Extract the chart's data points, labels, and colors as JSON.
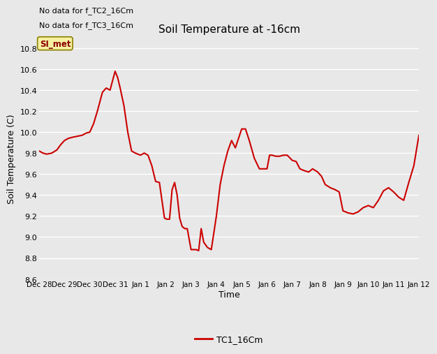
{
  "title": "Soil Temperature at -16cm",
  "xlabel": "Time",
  "ylabel": "Soil Temperature (C)",
  "ylim": [
    8.6,
    10.9
  ],
  "xlim": [
    0,
    15
  ],
  "line_color": "#cc0000",
  "line_width": 1.5,
  "bg_color": "#e8e8e8",
  "grid_color": "#ffffff",
  "legend_label": "TC1_16Cm",
  "no_data_texts": [
    "No data for f_TC2_16Cm",
    "No data for f_TC3_16Cm"
  ],
  "si_met_label": "SI_met",
  "tick_labels": [
    "Dec 28",
    "Dec 29",
    "Dec 30",
    "Dec 31",
    "Jan 1",
    "Jan 2",
    "Jan 3",
    "Jan 4",
    "Jan 5",
    "Jan 6",
    "Jan 7",
    "Jan 8",
    "Jan 9",
    "Jan 10",
    "Jan 11",
    "Jan 12"
  ],
  "yticks": [
    8.6,
    8.8,
    9.0,
    9.2,
    9.4,
    9.6,
    9.8,
    10.0,
    10.2,
    10.4,
    10.6,
    10.8
  ],
  "key_x": [
    0.0,
    0.15,
    0.3,
    0.5,
    0.7,
    0.85,
    1.0,
    1.15,
    1.3,
    1.5,
    1.7,
    1.85,
    2.0,
    2.15,
    2.3,
    2.5,
    2.65,
    2.8,
    3.0,
    3.1,
    3.2,
    3.35,
    3.5,
    3.65,
    3.8,
    4.0,
    4.15,
    4.3,
    4.45,
    4.6,
    4.75,
    4.85,
    4.95,
    5.05,
    5.15,
    5.25,
    5.35,
    5.45,
    5.55,
    5.65,
    5.75,
    5.85,
    6.0,
    6.1,
    6.2,
    6.3,
    6.4,
    6.5,
    6.65,
    6.8,
    7.0,
    7.15,
    7.3,
    7.45,
    7.6,
    7.75,
    8.0,
    8.15,
    8.3,
    8.5,
    8.7,
    8.85,
    9.0,
    9.1,
    9.2,
    9.35,
    9.5,
    9.65,
    9.8,
    10.0,
    10.15,
    10.3,
    10.5,
    10.65,
    10.8,
    11.0,
    11.15,
    11.3,
    11.5,
    11.7,
    11.85,
    12.0,
    12.2,
    12.4,
    12.6,
    12.8,
    13.0,
    13.2,
    13.4,
    13.6,
    13.8,
    14.0,
    14.2,
    14.4,
    14.6,
    14.8,
    15.0
  ],
  "key_y": [
    9.82,
    9.8,
    9.79,
    9.8,
    9.83,
    9.88,
    9.92,
    9.94,
    9.95,
    9.96,
    9.97,
    9.99,
    10.0,
    10.08,
    10.2,
    10.38,
    10.42,
    10.4,
    10.58,
    10.52,
    10.42,
    10.25,
    10.0,
    9.82,
    9.8,
    9.78,
    9.8,
    9.78,
    9.68,
    9.53,
    9.52,
    9.35,
    9.18,
    9.17,
    9.17,
    9.45,
    9.52,
    9.4,
    9.18,
    9.1,
    9.08,
    9.08,
    8.88,
    8.88,
    8.88,
    8.87,
    9.08,
    8.95,
    8.9,
    8.88,
    9.2,
    9.5,
    9.68,
    9.82,
    9.92,
    9.85,
    10.03,
    10.03,
    9.92,
    9.75,
    9.65,
    9.65,
    9.65,
    9.78,
    9.78,
    9.77,
    9.77,
    9.78,
    9.78,
    9.73,
    9.72,
    9.65,
    9.63,
    9.62,
    9.65,
    9.62,
    9.58,
    9.5,
    9.47,
    9.45,
    9.43,
    9.25,
    9.23,
    9.22,
    9.24,
    9.28,
    9.3,
    9.28,
    9.35,
    9.44,
    9.47,
    9.43,
    9.38,
    9.35,
    9.52,
    9.68,
    9.97
  ]
}
